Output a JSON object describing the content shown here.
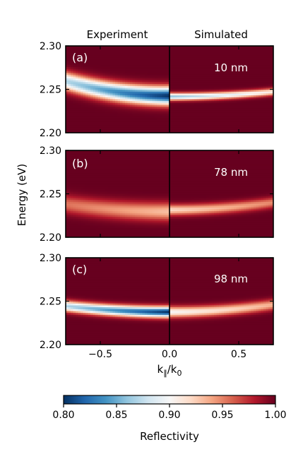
{
  "chart_data": {
    "type": "heatmap",
    "column_titles": [
      "Experiment",
      "Simulated"
    ],
    "ylabel": "Energy (eV)",
    "xlabel_main": "k",
    "xlabel_sub": "∥",
    "xlabel_rest": "/k",
    "xlabel_sub2": "0",
    "xlim": [
      -0.75,
      0.75
    ],
    "ylim": [
      2.2,
      2.3
    ],
    "xticks": [
      -0.5,
      0.0,
      0.5
    ],
    "xtick_labels": [
      "−0.5",
      "0.0",
      "0.5"
    ],
    "yticks": [
      2.2,
      2.25,
      2.3
    ],
    "ytick_labels": [
      "2.20",
      "2.25",
      "2.30"
    ],
    "colorbar": {
      "label": "Reflectivity",
      "range": [
        0.8,
        1.0
      ],
      "ticks": [
        0.8,
        0.85,
        0.9,
        0.95,
        1.0
      ],
      "tick_labels": [
        "0.80",
        "0.85",
        "0.90",
        "0.95",
        "1.00"
      ],
      "colors": [
        "#053061",
        "#2166ac",
        "#4393c3",
        "#92c5de",
        "#d1e5f0",
        "#f7f7f7",
        "#fddbc7",
        "#f4a582",
        "#d6604d",
        "#b2182b",
        "#67001f"
      ]
    },
    "panels": [
      {
        "label": "(a)",
        "thickness": "10 nm",
        "experiment": {
          "mode_energy": 2.243,
          "min_reflectivity": 0.8,
          "mode_width": 0.01,
          "curvature": 0.03
        },
        "simulated": {
          "mode_energy": 2.242,
          "min_reflectivity": 0.86,
          "mode_width": 0.004,
          "curvature": 0.01
        }
      },
      {
        "label": "(b)",
        "thickness": "78 nm",
        "experiment": {
          "mode_energy": 2.23,
          "min_reflectivity": 0.93,
          "mode_width": 0.01,
          "curvature": 0.015
        },
        "simulated": {
          "mode_energy": 2.232,
          "min_reflectivity": 0.92,
          "mode_width": 0.006,
          "curvature": 0.015
        }
      },
      {
        "label": "(c)",
        "thickness": "98 nm",
        "experiment": {
          "mode_energy": 2.238,
          "min_reflectivity": 0.8,
          "mode_width": 0.006,
          "curvature": 0.012
        },
        "simulated": {
          "mode_energy": 2.238,
          "min_reflectivity": 0.9,
          "mode_width": 0.006,
          "curvature": 0.015
        }
      }
    ]
  }
}
